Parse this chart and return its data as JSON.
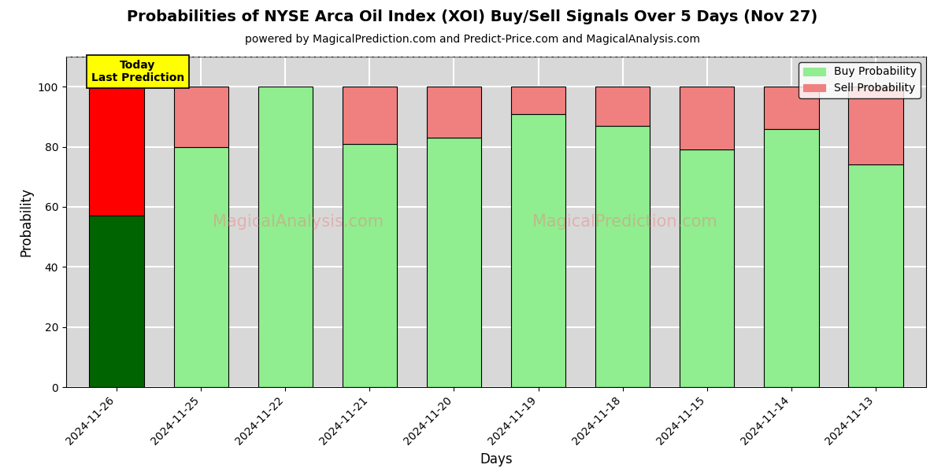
{
  "title": "Probabilities of NYSE Arca Oil Index (XOI) Buy/Sell Signals Over 5 Days (Nov 27)",
  "subtitle": "powered by MagicalPrediction.com and Predict-Price.com and MagicalAnalysis.com",
  "xlabel": "Days",
  "ylabel": "Probability",
  "dates": [
    "2024-11-26",
    "2024-11-25",
    "2024-11-22",
    "2024-11-21",
    "2024-11-20",
    "2024-11-19",
    "2024-11-18",
    "2024-11-15",
    "2024-11-14",
    "2024-11-13"
  ],
  "buy_values": [
    57,
    80,
    100,
    81,
    83,
    91,
    87,
    79,
    86,
    74
  ],
  "sell_values": [
    43,
    20,
    0,
    19,
    17,
    9,
    13,
    21,
    14,
    26
  ],
  "today_buy_color": "#006400",
  "today_sell_color": "#FF0000",
  "buy_color": "#90EE90",
  "sell_color": "#F08080",
  "bar_edge_color": "black",
  "bar_linewidth": 0.8,
  "ylim": [
    0,
    110
  ],
  "yticks": [
    0,
    20,
    40,
    60,
    80,
    100
  ],
  "dashed_line_y": 110,
  "watermark1": "MagicalAnalysis.com",
  "watermark2": "MagicalPrediction.com",
  "plot_bg_color": "#d8d8d8",
  "fig_bg_color": "#ffffff",
  "grid_color": "white",
  "today_label": "Today\nLast Prediction",
  "legend_buy": "Buy Probability",
  "legend_sell": "Sell Probability",
  "title_fontsize": 14,
  "subtitle_fontsize": 10,
  "bar_width": 0.65
}
